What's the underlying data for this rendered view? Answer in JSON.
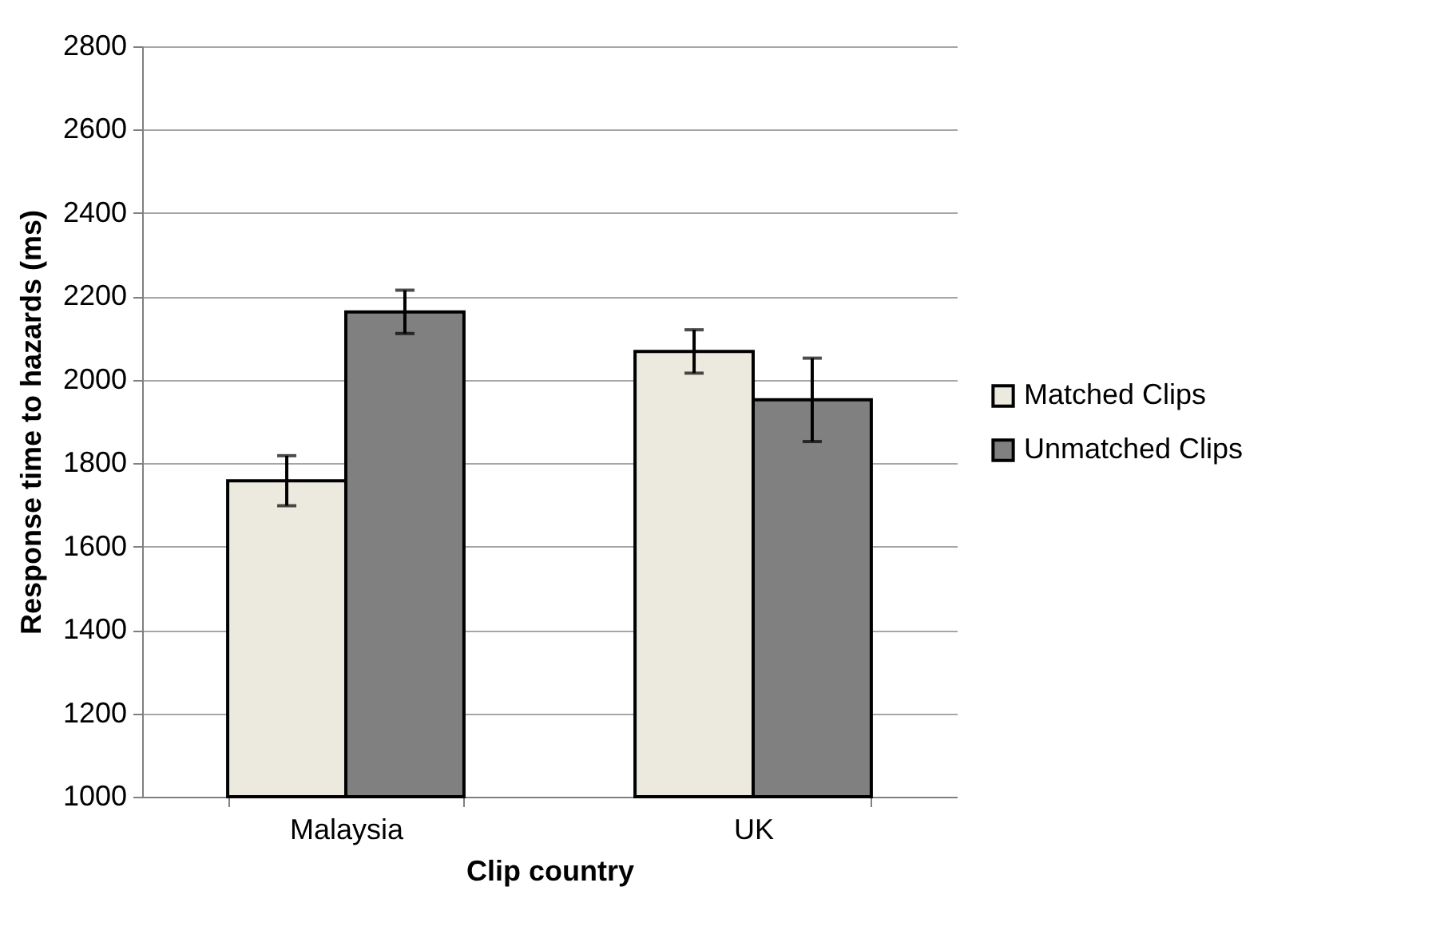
{
  "chart_data": {
    "type": "bar",
    "xlabel": "Clip country",
    "ylabel": "Response time to hazards (ms)",
    "categories": [
      "Malaysia",
      "UK"
    ],
    "series": [
      {
        "name": "Matched Clips",
        "color": "#eceadf",
        "values": [
          1758,
          2068
        ],
        "errors": [
          60,
          52
        ]
      },
      {
        "name": "Unmatched Clips",
        "color": "#808080",
        "values": [
          2163,
          1952
        ],
        "errors": [
          52,
          100
        ]
      }
    ],
    "ylim": [
      1000,
      2800
    ],
    "yticks": [
      1000,
      1200,
      1400,
      1600,
      1800,
      2000,
      2200,
      2400,
      2600,
      2800
    ],
    "grid": "y",
    "legend": "right"
  }
}
